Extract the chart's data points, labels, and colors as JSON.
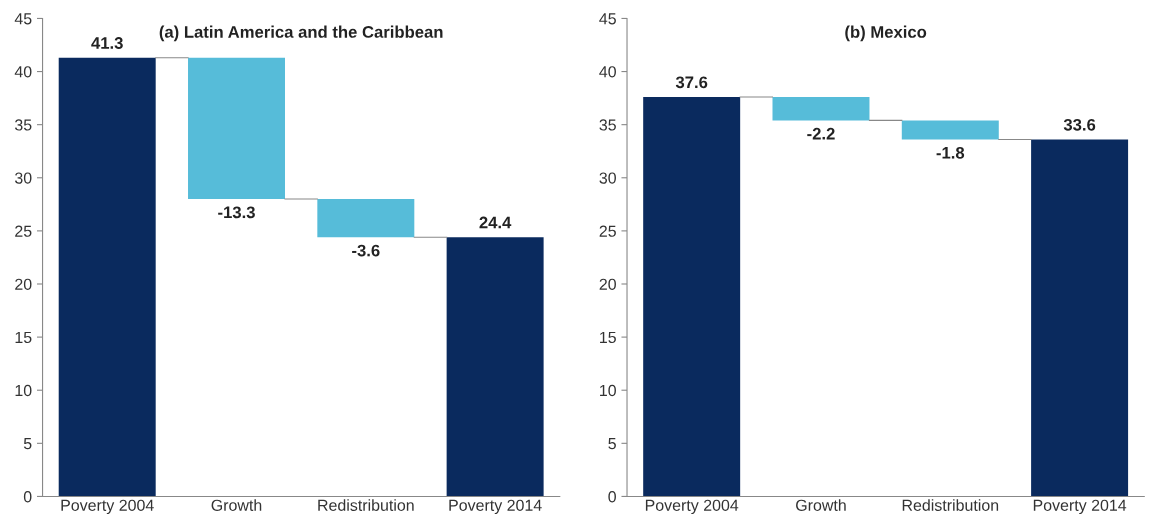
{
  "chart_data": [
    {
      "type": "bar",
      "title": "(a) Latin America and the Caribbean",
      "categories": [
        "Poverty 2004",
        "Growth",
        "Redistribution",
        "Poverty 2014"
      ],
      "values": [
        41.3,
        -13.3,
        -3.6,
        24.4
      ],
      "base": [
        0,
        41.3,
        28.0,
        0
      ],
      "colors": [
        "#0a2a5e",
        "#56bcd9",
        "#56bcd9",
        "#0a2a5e"
      ],
      "ylim": [
        0,
        45
      ],
      "yticks": [
        0,
        5,
        10,
        15,
        20,
        25,
        30,
        35,
        40,
        45
      ],
      "grid": false,
      "data_labels": true
    },
    {
      "type": "bar",
      "title": "(b) Mexico",
      "categories": [
        "Poverty 2004",
        "Growth",
        "Redistribution",
        "Poverty 2014"
      ],
      "values": [
        37.6,
        -2.2,
        -1.8,
        33.6
      ],
      "base": [
        0,
        37.6,
        35.4,
        0
      ],
      "colors": [
        "#0a2a5e",
        "#56bcd9",
        "#56bcd9",
        "#0a2a5e"
      ],
      "ylim": [
        0,
        45
      ],
      "yticks": [
        0,
        5,
        10,
        15,
        20,
        25,
        30,
        35,
        40,
        45
      ],
      "grid": false,
      "data_labels": true
    }
  ]
}
